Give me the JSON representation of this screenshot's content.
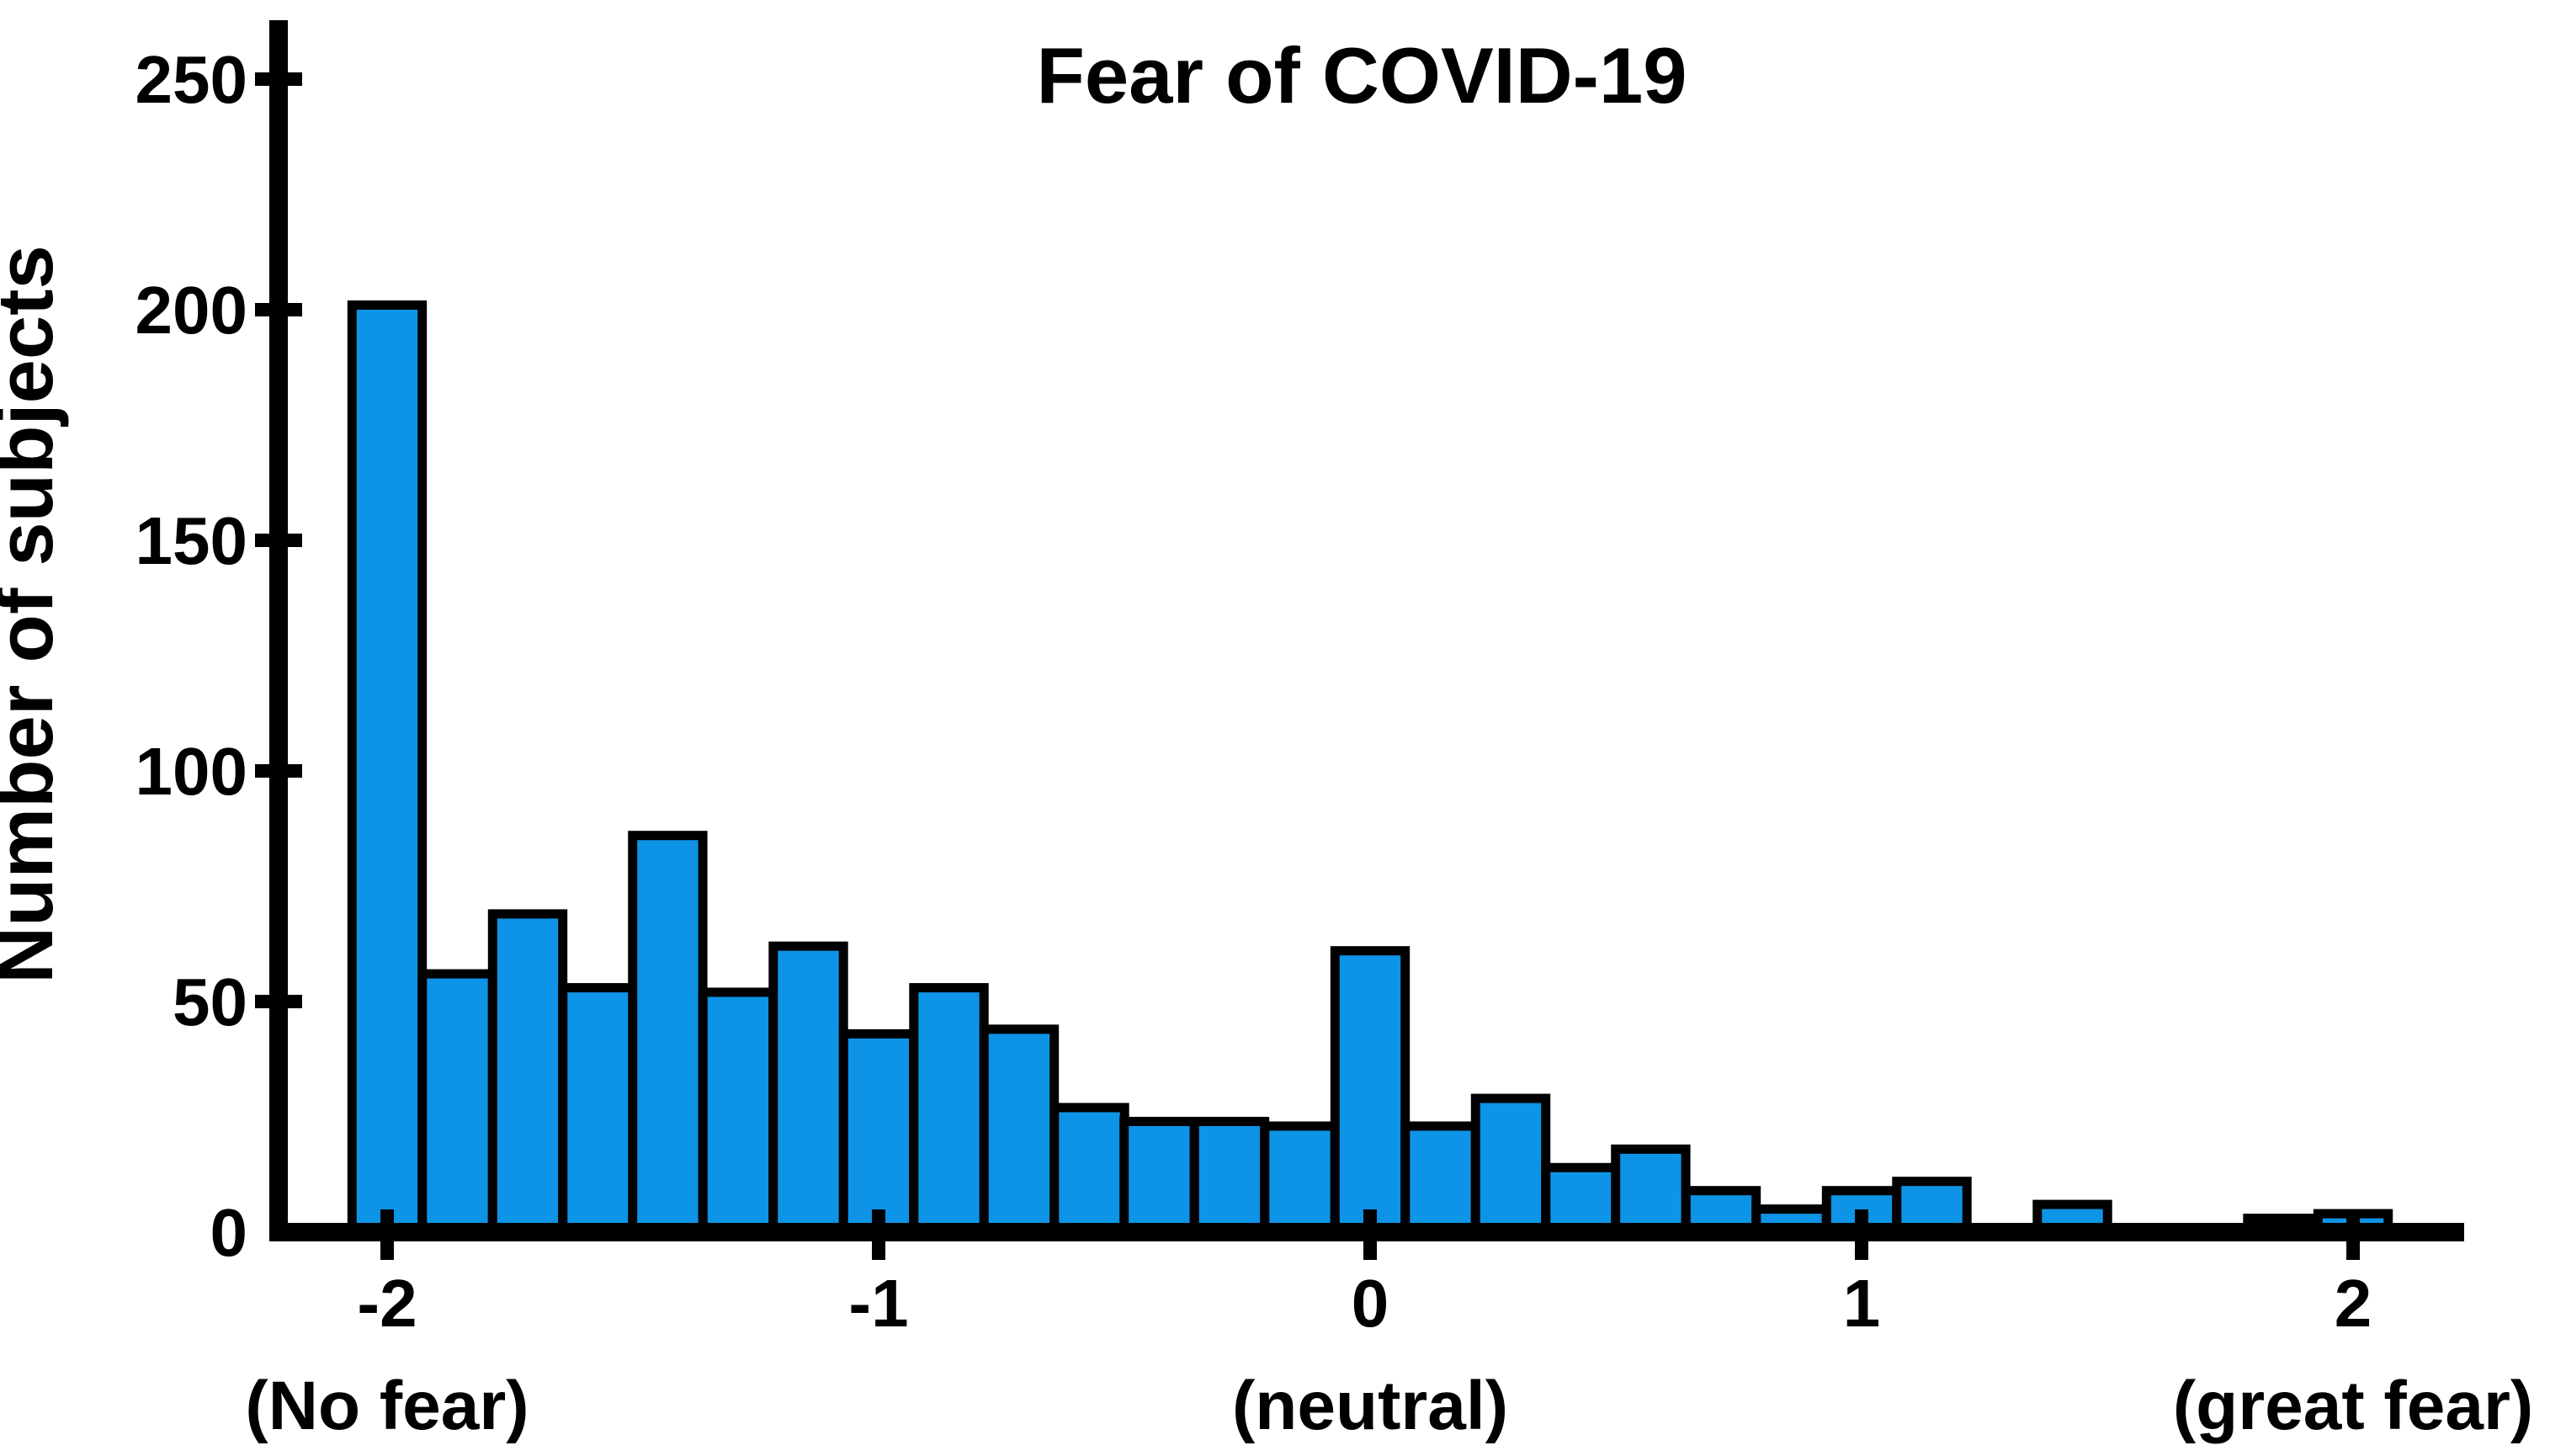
{
  "chart_data": {
    "type": "bar",
    "subtype": "histogram",
    "title": "Fear of COVID-19",
    "xlabel": "",
    "ylabel": "Number of subjects",
    "bin_width": 0.143,
    "x": [
      -2,
      -1.857,
      -1.714,
      -1.571,
      -1.429,
      -1.286,
      -1.143,
      -1,
      -0.857,
      -0.714,
      -0.571,
      -0.429,
      -0.286,
      -0.143,
      0,
      0.143,
      0.286,
      0.429,
      0.571,
      0.714,
      0.857,
      1,
      1.143,
      1.286,
      1.429,
      1.571,
      1.714,
      1.857,
      2
    ],
    "values": [
      201,
      56,
      69,
      53,
      86,
      52,
      62,
      43,
      53,
      44,
      27,
      24,
      24,
      23,
      61,
      23,
      29,
      14,
      18,
      9,
      5,
      9,
      11,
      0,
      6,
      0,
      0,
      3,
      4
    ],
    "y_ticks": [
      0,
      50,
      100,
      150,
      200,
      250
    ],
    "x_ticks": [
      {
        "value": -2,
        "label": "-2",
        "sublabel": "(No fear)"
      },
      {
        "value": -1,
        "label": "-1",
        "sublabel": ""
      },
      {
        "value": 0,
        "label": "0",
        "sublabel": "(neutral)"
      },
      {
        "value": 1,
        "label": "1",
        "sublabel": ""
      },
      {
        "value": 2,
        "label": "2",
        "sublabel": "(great fear)"
      }
    ],
    "ylim": [
      0,
      263
    ],
    "xlim": [
      -2.24,
      2.26
    ],
    "grid": false,
    "legend": false,
    "bar_fill_color": "#0E94E6",
    "bar_outline_color": "#000000",
    "axis_color": "#000000",
    "text_color": "#000000",
    "background_color": "#FFFFFF"
  }
}
